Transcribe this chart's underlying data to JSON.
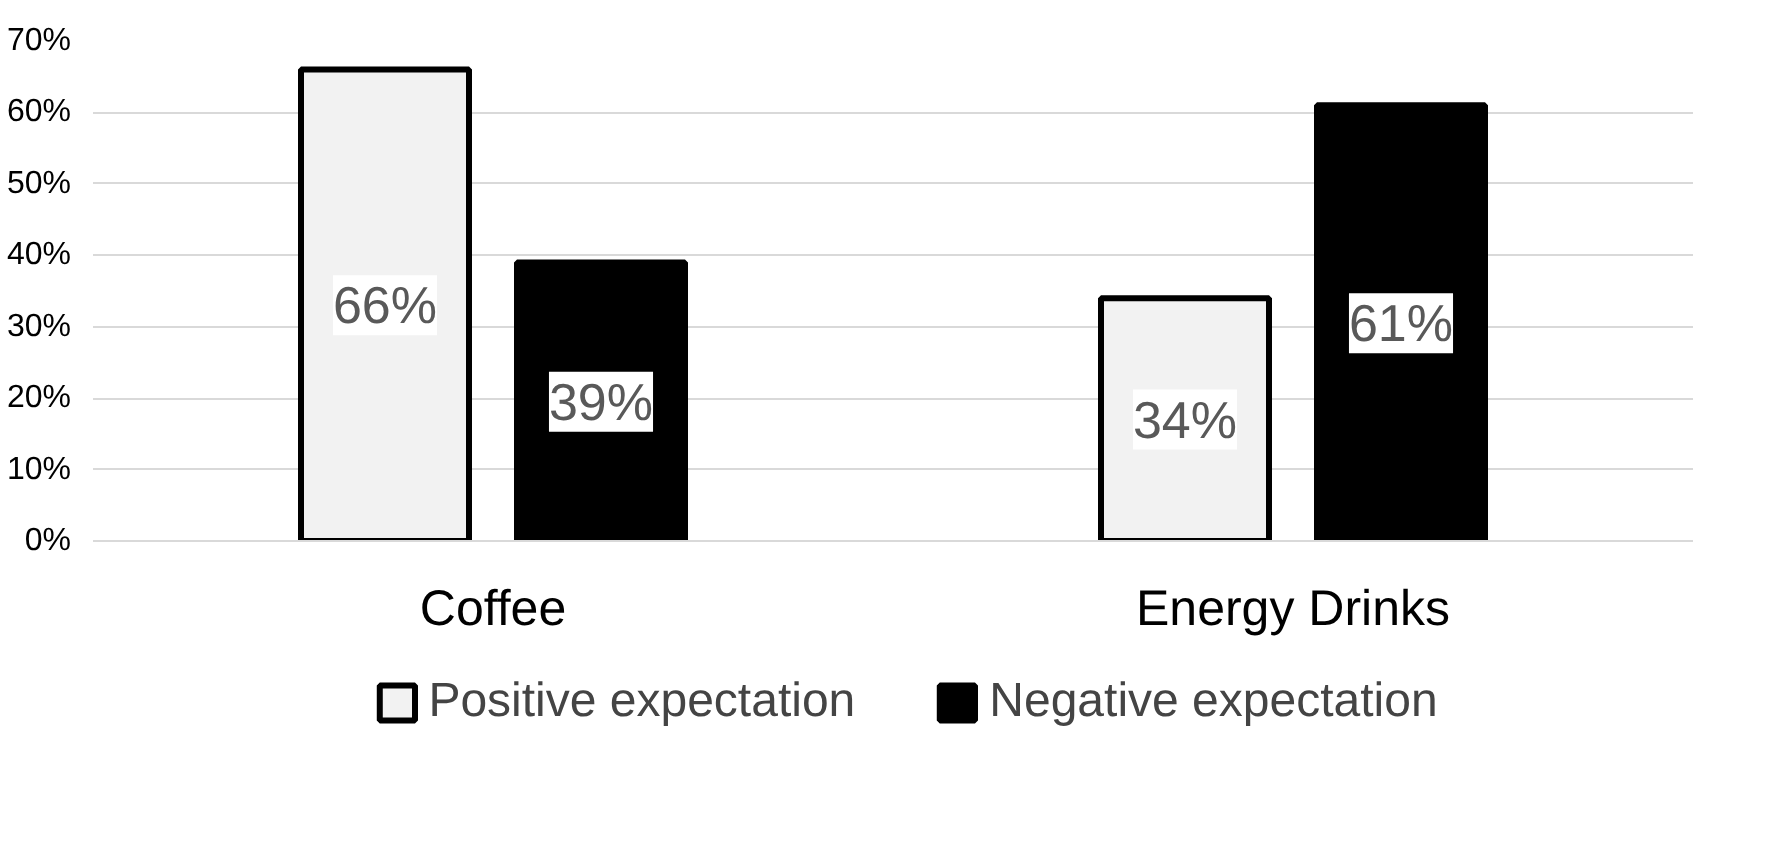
{
  "chart_data": {
    "type": "bar",
    "categories": [
      "Coffee",
      "Energy Drinks"
    ],
    "series": [
      {
        "name": "Positive expectation",
        "color": "#f2f2f2",
        "values": [
          66,
          34
        ],
        "value_labels": [
          "66%",
          "34%"
        ]
      },
      {
        "name": "Negative expectation",
        "color": "#000000",
        "values": [
          39,
          61
        ],
        "value_labels": [
          "39%",
          "61%"
        ]
      }
    ],
    "ylim": [
      0,
      70
    ],
    "yticks": [
      {
        "value": 0,
        "label": "0%"
      },
      {
        "value": 10,
        "label": "10%"
      },
      {
        "value": 20,
        "label": "20%"
      },
      {
        "value": 30,
        "label": "30%"
      },
      {
        "value": 40,
        "label": "40%"
      },
      {
        "value": 50,
        "label": "50%"
      },
      {
        "value": 60,
        "label": "60%"
      },
      {
        "value": 70,
        "label": "70%"
      }
    ],
    "grid": "y",
    "legend": "bottom"
  }
}
